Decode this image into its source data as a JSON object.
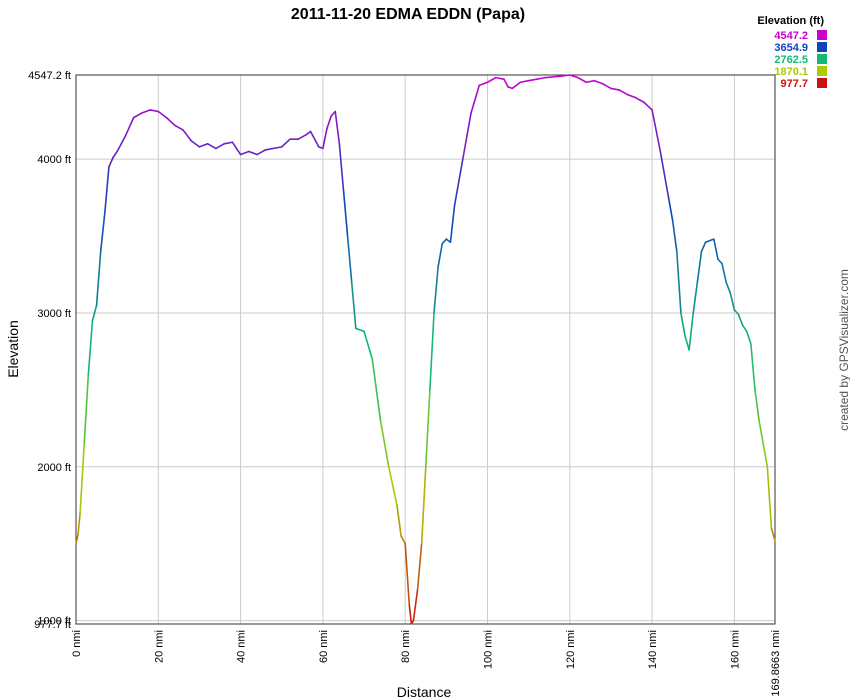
{
  "chart_data": {
    "type": "line",
    "title": "2011-11-20 EDMA EDDN (Papa)",
    "xlabel": "Distance",
    "ylabel": "Elevation",
    "credit": "created by GPSVisualizer.com",
    "xlim": [
      0,
      169.8663
    ],
    "ylim": [
      977.7,
      4547.2
    ],
    "grid": true,
    "x_ticks": [
      {
        "value": 0,
        "label": "0 nmi"
      },
      {
        "value": 20,
        "label": "20 nmi"
      },
      {
        "value": 40,
        "label": "40 nmi"
      },
      {
        "value": 60,
        "label": "60 nmi"
      },
      {
        "value": 80,
        "label": "80 nmi"
      },
      {
        "value": 100,
        "label": "100 nmi"
      },
      {
        "value": 120,
        "label": "120 nmi"
      },
      {
        "value": 140,
        "label": "140 nmi"
      },
      {
        "value": 160,
        "label": "160 nmi"
      },
      {
        "value": 169.8663,
        "label": "169.8663 nmi"
      }
    ],
    "y_ticks": [
      {
        "value": 977.7,
        "label": "977.7 ft"
      },
      {
        "value": 1000,
        "label": "1000 ft"
      },
      {
        "value": 2000,
        "label": "2000 ft"
      },
      {
        "value": 3000,
        "label": "3000 ft"
      },
      {
        "value": 4000,
        "label": "4000 ft"
      },
      {
        "value": 4547.2,
        "label": "4547.2 ft"
      }
    ],
    "legend": {
      "title": "Elevation (ft)",
      "placement": "top-right",
      "entries": [
        {
          "label": "4547.2",
          "color": "#cc00cc"
        },
        {
          "label": "3654.9",
          "color": "#1144bb"
        },
        {
          "label": "2762.5",
          "color": "#11bb77"
        },
        {
          "label": "1870.1",
          "color": "#aacc00"
        },
        {
          "label": "977.7",
          "color": "#cc1111"
        }
      ]
    },
    "series": [
      {
        "x": [
          0,
          0.5,
          1,
          2,
          3,
          4,
          5,
          6,
          7,
          8,
          9,
          10,
          12,
          14,
          16,
          18,
          20,
          22,
          24,
          26,
          28,
          30,
          32,
          34,
          36,
          38,
          40,
          42,
          44,
          46,
          48,
          50,
          52,
          54,
          56,
          57,
          59,
          60,
          61,
          62,
          63,
          64,
          65,
          66,
          67,
          68,
          70,
          72,
          74,
          76,
          78,
          79,
          80,
          81,
          81.5,
          82,
          83,
          84,
          85,
          86,
          87,
          88,
          89,
          90,
          91,
          92,
          94,
          96,
          98,
          100,
          102,
          104,
          105,
          106,
          107,
          108,
          110,
          112,
          114,
          116,
          118,
          120,
          122,
          124,
          126,
          128,
          130,
          132,
          134,
          136,
          138,
          140,
          142,
          144,
          145,
          146,
          147,
          148,
          149,
          150,
          151,
          152,
          153,
          154,
          155,
          156,
          157,
          158,
          159,
          160,
          161,
          162,
          163,
          164,
          165,
          166,
          167,
          168,
          169,
          169.8663
        ],
        "y": [
          1500,
          1560,
          1700,
          2150,
          2600,
          2950,
          3050,
          3400,
          3650,
          3950,
          4010,
          4050,
          4150,
          4270,
          4300,
          4320,
          4310,
          4270,
          4220,
          4190,
          4120,
          4080,
          4100,
          4070,
          4100,
          4110,
          4030,
          4050,
          4030,
          4060,
          4070,
          4080,
          4130,
          4130,
          4160,
          4180,
          4080,
          4070,
          4200,
          4280,
          4310,
          4100,
          3800,
          3500,
          3200,
          2900,
          2880,
          2700,
          2300,
          2000,
          1750,
          1550,
          1500,
          1100,
          980,
          1000,
          1200,
          1500,
          2000,
          2500,
          3000,
          3300,
          3450,
          3480,
          3460,
          3700,
          4000,
          4300,
          4480,
          4500,
          4530,
          4520,
          4470,
          4460,
          4480,
          4500,
          4510,
          4520,
          4530,
          4535,
          4540,
          4547.2,
          4530,
          4500,
          4510,
          4490,
          4460,
          4450,
          4420,
          4400,
          4370,
          4320,
          4050,
          3750,
          3600,
          3400,
          3000,
          2850,
          2760,
          3000,
          3200,
          3400,
          3460,
          3470,
          3480,
          3350,
          3320,
          3200,
          3130,
          3020,
          2990,
          2920,
          2880,
          2800,
          2500,
          2300,
          2150,
          2000,
          1600,
          1520
        ]
      }
    ]
  }
}
